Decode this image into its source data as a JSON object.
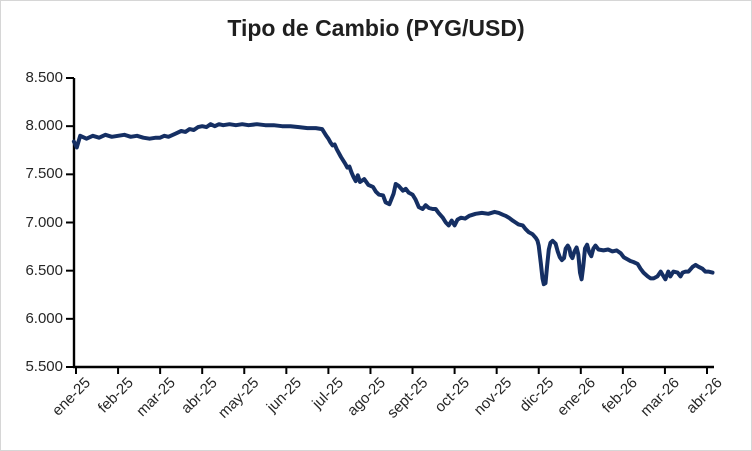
{
  "window": {
    "background": "#ffffff",
    "border_color": "#d6d6d6"
  },
  "chart_data": {
    "type": "line",
    "title": "Tipo de Cambio (PYG/USD)",
    "xlabel": "",
    "ylabel": "",
    "legend": "none",
    "grid": "off",
    "ylim": [
      5.5,
      8.5
    ],
    "y_tick_labels": [
      "8.500",
      "8.000",
      "7.500",
      "7.000",
      "6.500",
      "6.000",
      "5.500"
    ],
    "y_tick_values": [
      8.5,
      8.0,
      7.5,
      7.0,
      6.5,
      6.0,
      5.5
    ],
    "categories": [
      "ene-25",
      "feb-25",
      "mar-25",
      "abr-25",
      "may-25",
      "jun-25",
      "jul-25",
      "ago-25",
      "sept-25",
      "oct-25",
      "nov-25",
      "dic-25",
      "ene-26",
      "feb-26",
      "mar-26",
      "abr-26"
    ],
    "x_label_rotation": -45,
    "axis_color": "#000000",
    "series": [
      {
        "name": "Tipo de Cambio (PYG/USD)",
        "color": "#152f63",
        "points": [
          [
            -0.05,
            7.84
          ],
          [
            0.02,
            7.78
          ],
          [
            0.1,
            7.9
          ],
          [
            0.25,
            7.87
          ],
          [
            0.4,
            7.9
          ],
          [
            0.55,
            7.88
          ],
          [
            0.7,
            7.91
          ],
          [
            0.85,
            7.89
          ],
          [
            1.0,
            7.9
          ],
          [
            1.15,
            7.91
          ],
          [
            1.3,
            7.89
          ],
          [
            1.45,
            7.9
          ],
          [
            1.6,
            7.88
          ],
          [
            1.75,
            7.87
          ],
          [
            1.9,
            7.88
          ],
          [
            2.0,
            7.88
          ],
          [
            2.1,
            7.9
          ],
          [
            2.2,
            7.89
          ],
          [
            2.35,
            7.92
          ],
          [
            2.5,
            7.95
          ],
          [
            2.6,
            7.94
          ],
          [
            2.7,
            7.97
          ],
          [
            2.8,
            7.96
          ],
          [
            2.9,
            7.99
          ],
          [
            3.0,
            8.0
          ],
          [
            3.1,
            7.99
          ],
          [
            3.2,
            8.02
          ],
          [
            3.3,
            8.0
          ],
          [
            3.4,
            8.02
          ],
          [
            3.5,
            8.01
          ],
          [
            3.65,
            8.02
          ],
          [
            3.8,
            8.01
          ],
          [
            3.95,
            8.02
          ],
          [
            4.1,
            8.01
          ],
          [
            4.3,
            8.02
          ],
          [
            4.5,
            8.01
          ],
          [
            4.7,
            8.01
          ],
          [
            4.9,
            8.0
          ],
          [
            5.1,
            8.0
          ],
          [
            5.3,
            7.99
          ],
          [
            5.5,
            7.98
          ],
          [
            5.7,
            7.98
          ],
          [
            5.85,
            7.97
          ],
          [
            5.95,
            7.9
          ],
          [
            6.0,
            7.87
          ],
          [
            6.05,
            7.83
          ],
          [
            6.1,
            7.8
          ],
          [
            6.15,
            7.81
          ],
          [
            6.2,
            7.76
          ],
          [
            6.3,
            7.68
          ],
          [
            6.4,
            7.61
          ],
          [
            6.45,
            7.57
          ],
          [
            6.5,
            7.58
          ],
          [
            6.55,
            7.52
          ],
          [
            6.6,
            7.47
          ],
          [
            6.65,
            7.43
          ],
          [
            6.7,
            7.49
          ],
          [
            6.75,
            7.42
          ],
          [
            6.85,
            7.45
          ],
          [
            6.95,
            7.39
          ],
          [
            7.06,
            7.37
          ],
          [
            7.13,
            7.32
          ],
          [
            7.2,
            7.29
          ],
          [
            7.3,
            7.28
          ],
          [
            7.36,
            7.21
          ],
          [
            7.45,
            7.19
          ],
          [
            7.55,
            7.3
          ],
          [
            7.6,
            7.4
          ],
          [
            7.67,
            7.38
          ],
          [
            7.77,
            7.33
          ],
          [
            7.84,
            7.35
          ],
          [
            7.91,
            7.31
          ],
          [
            8.0,
            7.29
          ],
          [
            8.07,
            7.24
          ],
          [
            8.15,
            7.16
          ],
          [
            8.24,
            7.14
          ],
          [
            8.31,
            7.18
          ],
          [
            8.39,
            7.15
          ],
          [
            8.48,
            7.14
          ],
          [
            8.55,
            7.14
          ],
          [
            8.62,
            7.1
          ],
          [
            8.72,
            7.05
          ],
          [
            8.79,
            7.0
          ],
          [
            8.86,
            6.97
          ],
          [
            8.93,
            7.02
          ],
          [
            9.0,
            6.97
          ],
          [
            9.07,
            7.03
          ],
          [
            9.15,
            7.05
          ],
          [
            9.25,
            7.04
          ],
          [
            9.35,
            7.07
          ],
          [
            9.5,
            7.09
          ],
          [
            9.65,
            7.1
          ],
          [
            9.8,
            7.09
          ],
          [
            9.95,
            7.11
          ],
          [
            10.05,
            7.1
          ],
          [
            10.15,
            7.08
          ],
          [
            10.21,
            7.07
          ],
          [
            10.29,
            7.05
          ],
          [
            10.38,
            7.02
          ],
          [
            10.45,
            7.0
          ],
          [
            10.52,
            6.98
          ],
          [
            10.62,
            6.97
          ],
          [
            10.69,
            6.93
          ],
          [
            10.76,
            6.9
          ],
          [
            10.85,
            6.88
          ],
          [
            10.93,
            6.84
          ],
          [
            10.97,
            6.81
          ],
          [
            11.0,
            6.76
          ],
          [
            11.05,
            6.58
          ],
          [
            11.09,
            6.42
          ],
          [
            11.12,
            6.36
          ],
          [
            11.16,
            6.37
          ],
          [
            11.2,
            6.55
          ],
          [
            11.24,
            6.72
          ],
          [
            11.28,
            6.79
          ],
          [
            11.33,
            6.81
          ],
          [
            11.4,
            6.78
          ],
          [
            11.45,
            6.7
          ],
          [
            11.5,
            6.64
          ],
          [
            11.55,
            6.61
          ],
          [
            11.6,
            6.63
          ],
          [
            11.64,
            6.73
          ],
          [
            11.69,
            6.76
          ],
          [
            11.73,
            6.73
          ],
          [
            11.76,
            6.66
          ],
          [
            11.8,
            6.63
          ],
          [
            11.85,
            6.7
          ],
          [
            11.9,
            6.74
          ],
          [
            11.94,
            6.67
          ],
          [
            11.98,
            6.48
          ],
          [
            12.02,
            6.41
          ],
          [
            12.06,
            6.55
          ],
          [
            12.1,
            6.73
          ],
          [
            12.15,
            6.77
          ],
          [
            12.2,
            6.69
          ],
          [
            12.25,
            6.65
          ],
          [
            12.3,
            6.73
          ],
          [
            12.35,
            6.76
          ],
          [
            12.42,
            6.72
          ],
          [
            12.54,
            6.71
          ],
          [
            12.65,
            6.72
          ],
          [
            12.75,
            6.7
          ],
          [
            12.85,
            6.71
          ],
          [
            12.95,
            6.68
          ],
          [
            13.02,
            6.64
          ],
          [
            13.1,
            6.62
          ],
          [
            13.18,
            6.6
          ],
          [
            13.25,
            6.59
          ],
          [
            13.35,
            6.57
          ],
          [
            13.42,
            6.52
          ],
          [
            13.49,
            6.48
          ],
          [
            13.59,
            6.44
          ],
          [
            13.66,
            6.42
          ],
          [
            13.73,
            6.42
          ],
          [
            13.82,
            6.44
          ],
          [
            13.9,
            6.49
          ],
          [
            13.94,
            6.46
          ],
          [
            14.01,
            6.41
          ],
          [
            14.08,
            6.49
          ],
          [
            14.13,
            6.44
          ],
          [
            14.2,
            6.49
          ],
          [
            14.3,
            6.48
          ],
          [
            14.37,
            6.44
          ],
          [
            14.42,
            6.48
          ],
          [
            14.49,
            6.49
          ],
          [
            14.56,
            6.49
          ],
          [
            14.66,
            6.54
          ],
          [
            14.73,
            6.56
          ],
          [
            14.8,
            6.54
          ],
          [
            14.89,
            6.52
          ],
          [
            14.96,
            6.49
          ],
          [
            15.03,
            6.49
          ],
          [
            15.13,
            6.48
          ]
        ]
      }
    ]
  }
}
